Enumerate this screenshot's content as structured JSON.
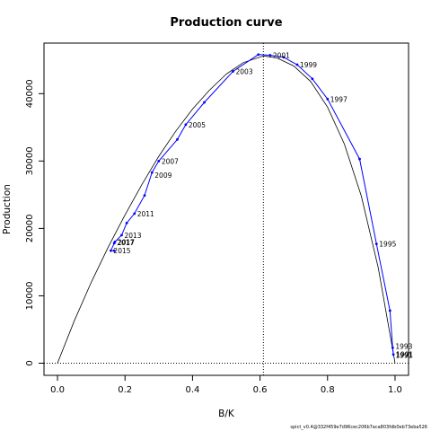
{
  "chart_data": {
    "type": "line",
    "title": "Production curve",
    "xlabel": "B/K",
    "ylabel": "Production",
    "xlim": [
      -0.04,
      1.04
    ],
    "ylim": [
      -1800,
      47500
    ],
    "x_ticks": [
      0.0,
      0.2,
      0.4,
      0.6,
      0.8,
      1.0
    ],
    "x_tick_labels": [
      "0.0",
      "0.2",
      "0.4",
      "0.6",
      "0.8",
      "1.0"
    ],
    "y_ticks": [
      0,
      10000,
      20000,
      30000,
      40000
    ],
    "y_tick_labels": [
      "0",
      "10000",
      "20000",
      "30000",
      "40000"
    ],
    "bmsy_over_k": 0.61,
    "production_curve": {
      "color": "#000000",
      "x": [
        0.0,
        0.05,
        0.1,
        0.15,
        0.2,
        0.25,
        0.3,
        0.35,
        0.4,
        0.45,
        0.5,
        0.55,
        0.61,
        0.65,
        0.7,
        0.75,
        0.8,
        0.85,
        0.9,
        0.95,
        1.0
      ],
      "y": [
        0,
        6300,
        12000,
        17200,
        22000,
        26500,
        30700,
        34400,
        37700,
        40500,
        42900,
        44600,
        45600,
        45300,
        44100,
        41800,
        38000,
        32500,
        24800,
        14200,
        0
      ]
    },
    "series": [
      {
        "color": "#0000ff",
        "x": [
          0.995,
          0.993,
          0.985,
          0.945,
          0.895,
          0.8,
          0.755,
          0.71,
          0.67,
          0.63,
          0.595,
          0.52,
          0.435,
          0.38,
          0.355,
          0.3,
          0.28,
          0.258,
          0.228,
          0.205,
          0.19,
          0.17,
          0.168,
          0.158,
          0.168
        ],
        "y": [
          1300,
          2300,
          7800,
          17700,
          30300,
          39200,
          42200,
          44300,
          45400,
          45700,
          45800,
          43300,
          38700,
          35400,
          33200,
          30000,
          28300,
          24900,
          22200,
          20800,
          19000,
          18000,
          17800,
          16700,
          16700
        ]
      }
    ],
    "year_labels": [
      {
        "text": "1991",
        "x": 0.995,
        "y": 1300
      },
      {
        "text": "1991",
        "x": 0.993,
        "y": 1200
      },
      {
        "text": "1993",
        "x": 0.993,
        "y": 2500
      },
      {
        "text": "1995",
        "x": 0.945,
        "y": 17700
      },
      {
        "text": "1997",
        "x": 0.8,
        "y": 39200
      },
      {
        "text": "1999",
        "x": 0.71,
        "y": 44300
      },
      {
        "text": "2001",
        "x": 0.63,
        "y": 45700
      },
      {
        "text": "2003",
        "x": 0.52,
        "y": 43300
      },
      {
        "text": "2005",
        "x": 0.38,
        "y": 35400
      },
      {
        "text": "2007",
        "x": 0.3,
        "y": 30000
      },
      {
        "text": "2009",
        "x": 0.28,
        "y": 27900
      },
      {
        "text": "2011",
        "x": 0.228,
        "y": 22200
      },
      {
        "text": "2013",
        "x": 0.19,
        "y": 19000
      },
      {
        "text": "2017",
        "x": 0.17,
        "y": 18000
      },
      {
        "text": "2017",
        "x": 0.168,
        "y": 17900
      },
      {
        "text": "2015",
        "x": 0.158,
        "y": 16700
      }
    ],
    "grid": false,
    "legend": "none",
    "footer": "spict_v0.4@332f459e7d96cec206b7aca803fdb0eb73eba526"
  }
}
